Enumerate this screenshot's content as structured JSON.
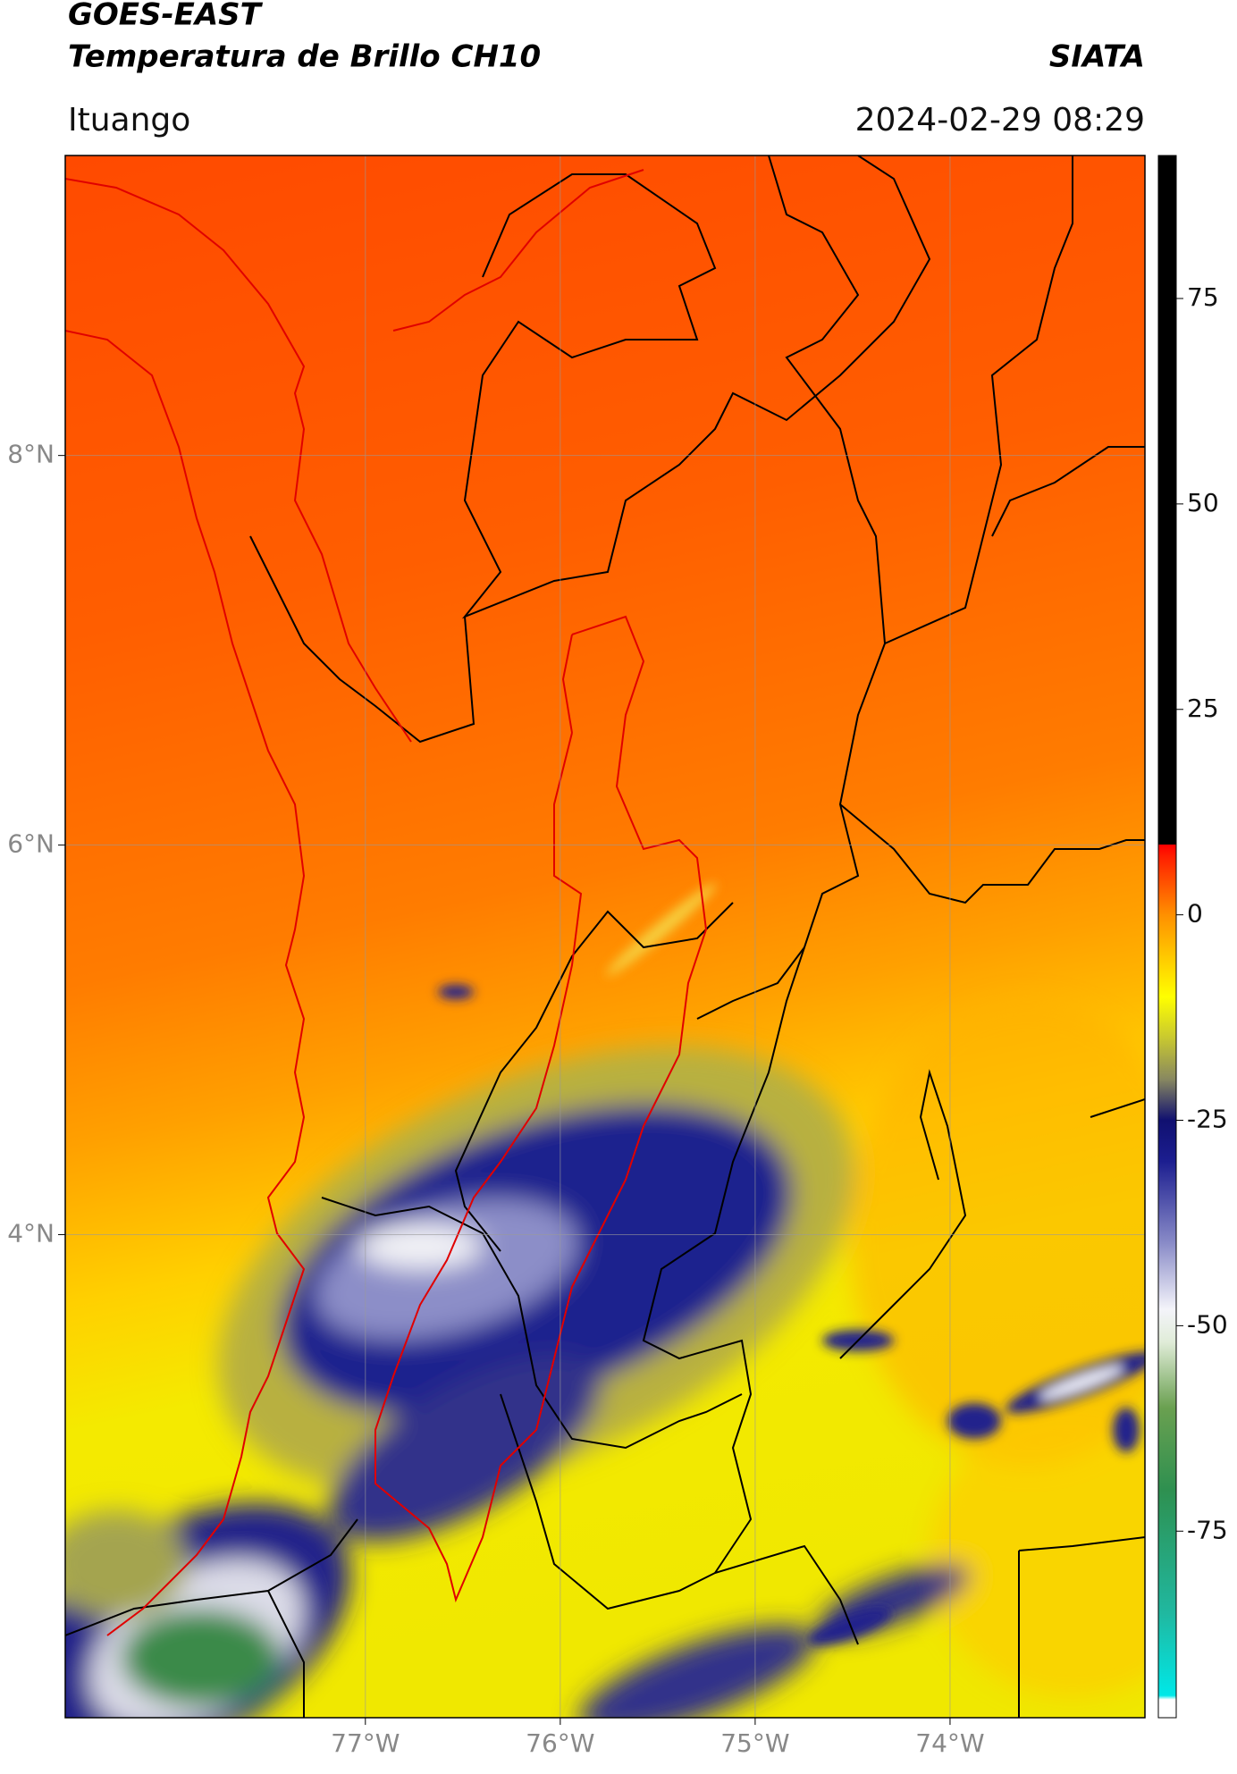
{
  "header": {
    "title": "GOES-EAST",
    "subtitle": "Temperatura de Brillo CH10",
    "source": "SIATA",
    "location": "Ituango",
    "datetime": "2024-02-29 08:29"
  },
  "map": {
    "lonlim": [
      -78.54,
      -73.0
    ],
    "latlim": [
      1.52,
      9.54
    ],
    "grid": true,
    "xticks": [
      {
        "value": -77,
        "label": "77°W"
      },
      {
        "value": -76,
        "label": "76°W"
      },
      {
        "value": -75,
        "label": "75°W"
      },
      {
        "value": -74,
        "label": "74°W"
      }
    ],
    "yticks": [
      {
        "value": 8,
        "label": "8°N"
      },
      {
        "value": 6,
        "label": "6°N"
      },
      {
        "value": 4,
        "label": "4°N"
      }
    ]
  },
  "colorbar": {
    "lim": [
      -97.7,
      92.4
    ],
    "ticks": [
      75,
      50,
      25,
      0,
      -25,
      -50,
      -75
    ],
    "colormap": [
      {
        "value": -97.7,
        "color": "#ffffff"
      },
      {
        "value": -95.5,
        "color": "#ffffff"
      },
      {
        "value": -95,
        "color": "#00e8e8"
      },
      {
        "value": -85,
        "color": "#20b8a0"
      },
      {
        "value": -70,
        "color": "#2e9050"
      },
      {
        "value": -60,
        "color": "#6aa050"
      },
      {
        "value": -52,
        "color": "#e0ecd8"
      },
      {
        "value": -48,
        "color": "#f4f4fa"
      },
      {
        "value": -40,
        "color": "#8a8cc8"
      },
      {
        "value": -30,
        "color": "#1c1e90"
      },
      {
        "value": -25,
        "color": "#101070"
      },
      {
        "value": -20,
        "color": "#888860"
      },
      {
        "value": -15,
        "color": "#c8c830"
      },
      {
        "value": -10,
        "color": "#ffff00"
      },
      {
        "value": 0,
        "color": "#ff9000"
      },
      {
        "value": 7,
        "color": "#ff2000"
      },
      {
        "value": 8.5,
        "color": "#ff0000"
      },
      {
        "value": 8.6,
        "color": "#000000"
      },
      {
        "value": 92.4,
        "color": "#000000"
      }
    ]
  }
}
